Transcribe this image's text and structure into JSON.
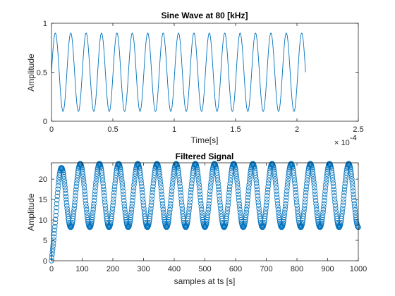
{
  "chart_data": [
    {
      "type": "line",
      "title": "Sine Wave at 80 [kHz]",
      "xlabel": "Time[s]",
      "ylabel": "Amplitude",
      "x_exponent_base": "× 10",
      "x_exponent_power": "-4",
      "xlim": [
        0,
        2.5
      ],
      "ylim": [
        0,
        1
      ],
      "xticks": [
        0,
        0.5,
        1,
        1.5,
        2,
        2.5
      ],
      "xtick_labels": [
        "0",
        "0.5",
        "1",
        "1.5",
        "2",
        "2.5"
      ],
      "yticks": [
        0,
        0.5,
        1
      ],
      "ytick_labels": [
        "0",
        "0.5",
        "1"
      ],
      "series": [
        {
          "signal": "sine",
          "x_start": 0,
          "x_end": 2.07,
          "offset": 0.5,
          "amplitude": 0.4,
          "cycles": 16.5,
          "color": "#0072BD"
        }
      ],
      "grid": false
    },
    {
      "type": "scatter",
      "title": "Filtered Signal",
      "xlabel": "samples at ts [s]",
      "ylabel": "Amplitude",
      "xlim": [
        0,
        1000
      ],
      "ylim": [
        0,
        24
      ],
      "xticks": [
        0,
        100,
        200,
        300,
        400,
        500,
        600,
        700,
        800,
        900,
        1000
      ],
      "xtick_labels": [
        "0",
        "100",
        "200",
        "300",
        "400",
        "500",
        "600",
        "700",
        "800",
        "900",
        "1000"
      ],
      "yticks": [
        0,
        5,
        10,
        15,
        20
      ],
      "ytick_labels": [
        "0",
        "5",
        "10",
        "15",
        "20"
      ],
      "series": [
        {
          "signal": "filtered-sine",
          "x_start": 0,
          "x_end": 1000,
          "offset": 16,
          "amplitude": 7.8,
          "period": 62.5,
          "rise_samples": 30,
          "marker": "circle",
          "color": "#0072BD"
        }
      ],
      "grid": false
    }
  ]
}
